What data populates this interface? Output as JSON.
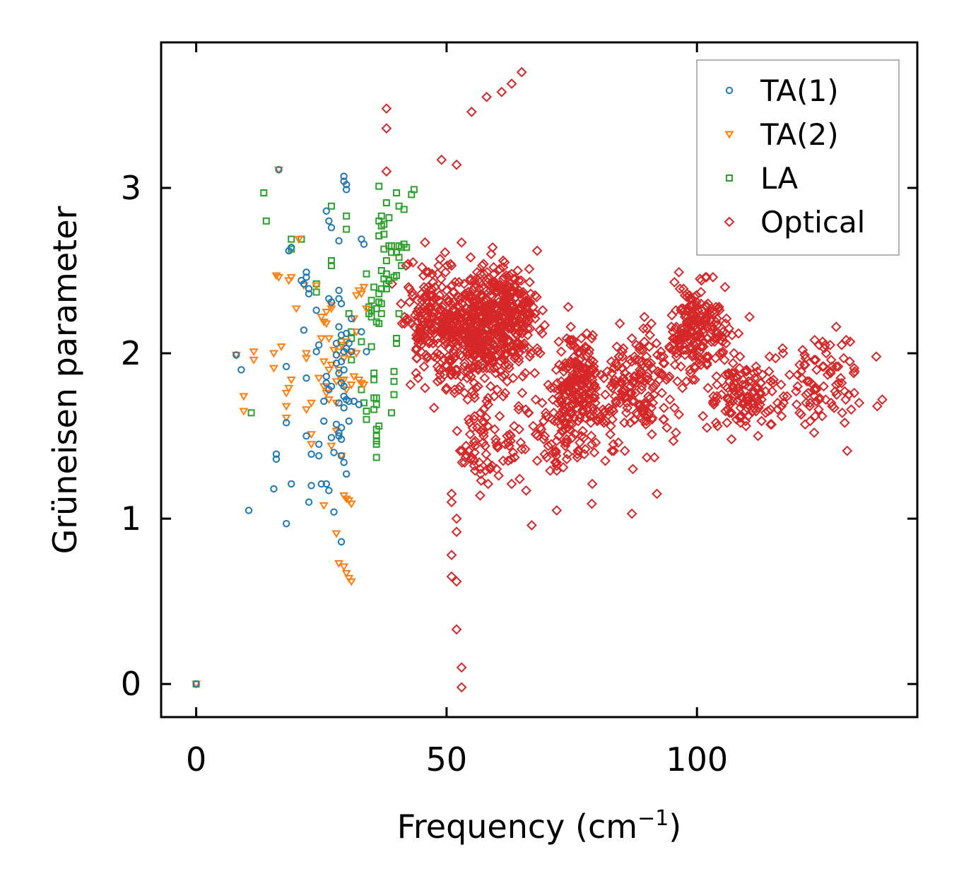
{
  "chart_data": {
    "type": "scatter",
    "title": "",
    "xlabel": "Frequency (cm",
    "xlabel_sup": "−1",
    "xlabel_close": ")",
    "ylabel": "Grüneisen parameter",
    "xlim": [
      -7,
      144
    ],
    "ylim": [
      -0.2,
      3.88
    ],
    "xticks": [
      0,
      50,
      100
    ],
    "yticks": [
      0,
      1,
      2,
      3
    ],
    "xtick_labels": [
      "0",
      "50",
      "100"
    ],
    "ytick_labels": [
      "0",
      "1",
      "2",
      "3"
    ],
    "grid": false,
    "legend_position": "top-right",
    "series": [
      {
        "name": "TA(1)",
        "marker": "circle",
        "color": "#1f77b4",
        "points": [
          [
            0,
            0
          ],
          [
            8,
            1.99
          ],
          [
            9,
            1.9
          ],
          [
            10.5,
            1.05
          ],
          [
            15.5,
            1.18
          ],
          [
            16,
            1.36
          ],
          [
            16,
            1.39
          ],
          [
            16.5,
            3.11
          ],
          [
            18,
            1.58
          ],
          [
            18,
            1.92
          ],
          [
            18,
            0.97
          ],
          [
            18.5,
            2.62
          ],
          [
            19,
            2.64
          ],
          [
            19,
            1.21
          ],
          [
            21,
            2.44
          ],
          [
            21.5,
            2.42
          ],
          [
            21.5,
            2.14
          ],
          [
            22,
            2.49
          ],
          [
            22,
            2.46
          ],
          [
            22,
            1.85
          ],
          [
            22,
            1.5
          ],
          [
            22.5,
            2.39
          ],
          [
            22.5,
            2.36
          ],
          [
            22.5,
            1.1
          ],
          [
            23,
            1.2
          ],
          [
            23,
            1.39
          ],
          [
            24,
            2.26
          ],
          [
            24,
            2.01
          ],
          [
            24.5,
            2.05
          ],
          [
            24.5,
            1.45
          ],
          [
            24.5,
            1.38
          ],
          [
            25,
            1.21
          ],
          [
            25.5,
            1.71
          ],
          [
            25.5,
            1.59
          ],
          [
            26,
            2.86
          ],
          [
            26,
            1.86
          ],
          [
            26,
            1.82
          ],
          [
            26,
            1.21
          ],
          [
            26.5,
            2.8
          ],
          [
            26.5,
            2.33
          ],
          [
            26.5,
            1.78
          ],
          [
            26.5,
            1.17
          ],
          [
            27,
            2.76
          ],
          [
            27,
            2.31
          ],
          [
            27,
            1.8
          ],
          [
            27,
            1.49
          ],
          [
            27.5,
            1.4
          ],
          [
            27.5,
            1.04
          ],
          [
            28,
            2.06
          ],
          [
            28,
            1.99
          ],
          [
            28,
            1.94
          ],
          [
            28,
            1.57
          ],
          [
            28.5,
            2.68
          ],
          [
            28.5,
            2.38
          ],
          [
            28.5,
            2.33
          ],
          [
            28.5,
            2.16
          ],
          [
            28.5,
            1.88
          ],
          [
            28.5,
            1.7
          ],
          [
            28.5,
            1.52
          ],
          [
            28.5,
            1.5
          ],
          [
            29,
            2.3
          ],
          [
            29,
            2.11
          ],
          [
            29,
            1.95
          ],
          [
            29,
            1.82
          ],
          [
            29,
            1.55
          ],
          [
            29,
            1.48
          ],
          [
            29,
            1.38
          ],
          [
            29,
            0.86
          ],
          [
            29.5,
            3.07
          ],
          [
            29.5,
            3.04
          ],
          [
            29.5,
            2.01
          ],
          [
            29.5,
            1.9
          ],
          [
            29.5,
            1.8
          ],
          [
            29.5,
            1.74
          ],
          [
            29.5,
            1.67
          ],
          [
            29.5,
            1.34
          ],
          [
            30,
            3.02
          ],
          [
            30,
            2.99
          ],
          [
            30,
            2.12
          ],
          [
            30,
            2.03
          ],
          [
            30,
            1.72
          ],
          [
            30,
            1.27
          ],
          [
            30.5,
            2.06
          ],
          [
            30.5,
            1.71
          ],
          [
            30.5,
            1.59
          ],
          [
            31,
            2.21
          ],
          [
            31,
            2.01
          ],
          [
            31.5,
            1.71
          ],
          [
            32.5,
            1.69
          ],
          [
            33,
            2.69
          ],
          [
            33,
            2.13
          ],
          [
            33.5,
            2.66
          ],
          [
            34,
            2.01
          ]
        ]
      },
      {
        "name": "TA(2)",
        "marker": "triangle-down",
        "color": "#ff7f0e",
        "points": [
          [
            0,
            0
          ],
          [
            8,
            1.99
          ],
          [
            9.5,
            1.74
          ],
          [
            9.5,
            1.65
          ],
          [
            11.5,
            2.01
          ],
          [
            11.5,
            1.96
          ],
          [
            15.5,
            2
          ],
          [
            15.5,
            1.91
          ],
          [
            16,
            2.47
          ],
          [
            16.5,
            2.46
          ],
          [
            16.5,
            3.11
          ],
          [
            17,
            2.04
          ],
          [
            18,
            1.76
          ],
          [
            18,
            1.68
          ],
          [
            18,
            1.61
          ],
          [
            18.5,
            2.44
          ],
          [
            18.5,
            1.79
          ],
          [
            19,
            2.46
          ],
          [
            19,
            1.84
          ],
          [
            20,
            2.27
          ],
          [
            20.5,
            2.69
          ],
          [
            21.5,
            2.41
          ],
          [
            22,
            2
          ],
          [
            22,
            1.97
          ],
          [
            22,
            1.66
          ],
          [
            23,
            1.7
          ],
          [
            23,
            1.51
          ],
          [
            23,
            1.45
          ],
          [
            24,
            2.41
          ],
          [
            24.5,
            1.85
          ],
          [
            25,
            2.22
          ],
          [
            25,
            2.09
          ],
          [
            25.5,
            2.19
          ],
          [
            25.5,
            1.95
          ],
          [
            25.5,
            1.8
          ],
          [
            25.5,
            1.08
          ],
          [
            26,
            2.25
          ],
          [
            26,
            2.18
          ],
          [
            26,
            1.76
          ],
          [
            26.5,
            2.09
          ],
          [
            26.5,
            1.9
          ],
          [
            26.5,
            1.72
          ],
          [
            27,
            2.29
          ],
          [
            27,
            2.27
          ],
          [
            27,
            1.93
          ],
          [
            27,
            1.44
          ],
          [
            27.5,
            2.02
          ],
          [
            28,
            1.83
          ],
          [
            28,
            1.7
          ],
          [
            28,
            1.53
          ],
          [
            28,
            0.91
          ],
          [
            28.5,
            2.01
          ],
          [
            28.5,
            1.9
          ],
          [
            28.5,
            0.73
          ],
          [
            29,
            2.05
          ],
          [
            29,
            1.84
          ],
          [
            29,
            1.38
          ],
          [
            29.5,
            1.97
          ],
          [
            29.5,
            1.84
          ],
          [
            29.5,
            1.14
          ],
          [
            29.5,
            0.71
          ],
          [
            30,
            2.07
          ],
          [
            30,
            1.78
          ],
          [
            30,
            1.12
          ],
          [
            30,
            0.67
          ],
          [
            30.5,
            1.99
          ],
          [
            30.5,
            1.11
          ],
          [
            30.5,
            0.64
          ],
          [
            31,
            2.01
          ],
          [
            31,
            1.81
          ],
          [
            31,
            1.09
          ],
          [
            31,
            0.62
          ],
          [
            31.5,
            2.21
          ],
          [
            31.5,
            1.86
          ],
          [
            32,
            2.35
          ],
          [
            32,
            2.13
          ],
          [
            32,
            2
          ],
          [
            32.5,
            2.38
          ],
          [
            32.5,
            1.84
          ],
          [
            33,
            2.36
          ],
          [
            33,
            1.82
          ],
          [
            33.5,
            2.4
          ],
          [
            33.5,
            1.81
          ],
          [
            34,
            2.27
          ]
        ]
      },
      {
        "name": "LA",
        "marker": "square",
        "color": "#2ca02c",
        "points": [
          [
            0,
            0
          ],
          [
            11,
            1.64
          ],
          [
            13.5,
            2.97
          ],
          [
            14,
            2.8
          ],
          [
            19,
            2.69
          ],
          [
            19,
            2.63
          ],
          [
            21,
            2.69
          ],
          [
            24,
            2.42
          ],
          [
            24,
            2.37
          ],
          [
            27,
            2.89
          ],
          [
            27,
            2.56
          ],
          [
            27,
            2.53
          ],
          [
            29,
            2.07
          ],
          [
            30,
            2.83
          ],
          [
            30,
            2.75
          ],
          [
            30.5,
            2.24
          ],
          [
            31,
            2.13
          ],
          [
            31,
            2.09
          ],
          [
            31,
            1.96
          ],
          [
            33,
            2.07
          ],
          [
            33,
            1.78
          ],
          [
            33.5,
            1.7
          ],
          [
            34,
            2.48
          ],
          [
            34,
            1.65
          ],
          [
            34,
            1.6
          ],
          [
            34.5,
            2.28
          ],
          [
            34.5,
            2.24
          ],
          [
            35,
            2.32
          ],
          [
            35,
            2.26
          ],
          [
            35,
            2.22
          ],
          [
            35,
            2.04
          ],
          [
            35.5,
            2.4
          ],
          [
            35.5,
            1.73
          ],
          [
            35.5,
            1.66
          ],
          [
            35.5,
            1.84
          ],
          [
            35.5,
            1.88
          ],
          [
            36,
            2.27
          ],
          [
            36,
            2.19
          ],
          [
            36,
            1.73
          ],
          [
            36,
            1.69
          ],
          [
            36,
            1.54
          ],
          [
            36,
            1.5
          ],
          [
            36,
            1.47
          ],
          [
            36,
            1.45
          ],
          [
            36,
            1.37
          ],
          [
            36.5,
            2.8
          ],
          [
            36.5,
            2.71
          ],
          [
            36.5,
            2.36
          ],
          [
            36.5,
            2.31
          ],
          [
            36.5,
            2.18
          ],
          [
            36.5,
            1.56
          ],
          [
            36.5,
            3.01
          ],
          [
            37,
            2.83
          ],
          [
            37,
            2.77
          ],
          [
            37,
            2.5
          ],
          [
            37,
            2.39
          ],
          [
            37,
            2.3
          ],
          [
            37,
            2.24
          ],
          [
            37.5,
            2.78
          ],
          [
            37.5,
            2.72
          ],
          [
            37.5,
            2.63
          ],
          [
            37.5,
            2.45
          ],
          [
            38,
            2.91
          ],
          [
            38,
            2.56
          ],
          [
            38,
            2.48
          ],
          [
            38,
            2.42
          ],
          [
            38,
            2.39
          ],
          [
            38.5,
            2.82
          ],
          [
            38.5,
            2.65
          ],
          [
            38.5,
            2.44
          ],
          [
            39,
            2.65
          ],
          [
            39,
            2.61
          ],
          [
            39,
            1.64
          ],
          [
            39.5,
            2.46
          ],
          [
            39.5,
            1.89
          ],
          [
            39.5,
            1.75
          ],
          [
            39.5,
            1.83
          ],
          [
            40,
            2.97
          ],
          [
            40,
            2.61
          ],
          [
            40,
            2.47
          ],
          [
            40,
            2.09
          ],
          [
            40,
            2.06
          ],
          [
            40.5,
            2.89
          ],
          [
            40.5,
            2.65
          ],
          [
            40.5,
            2.58
          ],
          [
            40.5,
            2.24
          ],
          [
            41,
            2.64
          ],
          [
            41,
            2.53
          ],
          [
            41.5,
            2.87
          ],
          [
            41.5,
            2.66
          ],
          [
            42,
            2.64
          ],
          [
            43,
            2.96
          ],
          [
            43.5,
            2.99
          ]
        ]
      },
      {
        "name": "Optical",
        "marker": "diamond",
        "color": "#d62728",
        "points": []
      }
    ]
  }
}
